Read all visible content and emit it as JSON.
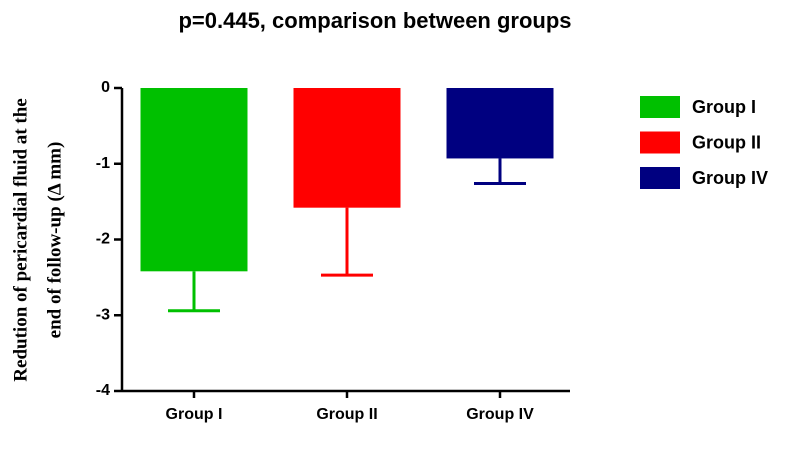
{
  "chart_data": {
    "type": "bar",
    "title": "p=0.445, comparison between groups",
    "ylabel": [
      "Redution of pericardial fluid at the",
      "end of follow-up (Δ mm)"
    ],
    "categories": [
      "Group I",
      "Group II",
      "Group IV"
    ],
    "values": [
      -2.42,
      -1.58,
      -0.93
    ],
    "errors": [
      0.52,
      0.89,
      0.33
    ],
    "colors": [
      "#00c000",
      "#ff0000",
      "#000080"
    ],
    "ylim": [
      -4,
      0
    ],
    "yticks": [
      0,
      -1,
      -2,
      -3,
      -4
    ],
    "legend": "right"
  }
}
